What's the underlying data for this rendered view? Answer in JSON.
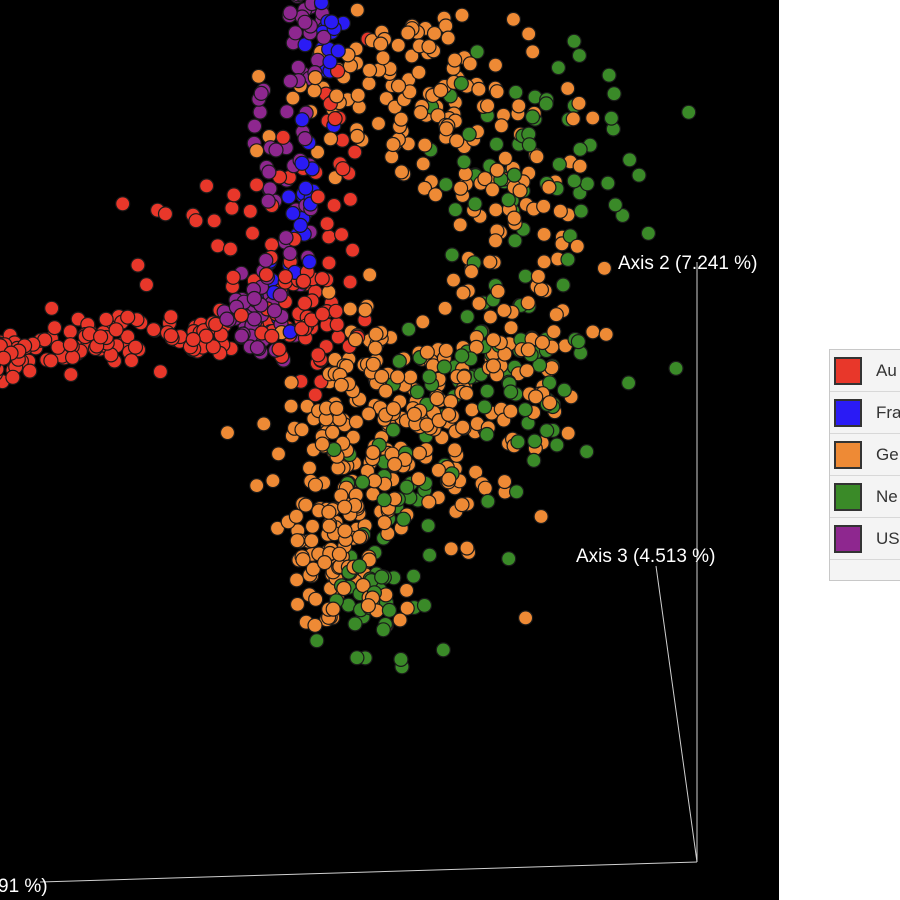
{
  "chart_data": {
    "type": "scatter",
    "subtype": "3d-pcoa",
    "background": "#000000",
    "axes": [
      {
        "name": "axis-1",
        "label": "91 %)"
      },
      {
        "name": "axis-2",
        "label": "Axis 2 (7.241 %)"
      },
      {
        "name": "axis-3",
        "label": "Axis 3 (4.513 %)"
      }
    ],
    "legend": {
      "placement": "right",
      "items": [
        {
          "label": "Au",
          "color": "#e8372a"
        },
        {
          "label": "Fra",
          "color": "#2a1bf5"
        },
        {
          "label": "Ge",
          "color": "#ee8a35"
        },
        {
          "label": "Ne",
          "color": "#3a8a28"
        },
        {
          "label": "US",
          "color": "#8e278f"
        }
      ]
    },
    "series": [
      {
        "name": "Au",
        "color": "#e8372a",
        "count": 260,
        "clusters": [
          {
            "x": -0.95,
            "y": 0.02,
            "sx": 0.08,
            "sy": 0.035,
            "w": 0.22
          },
          {
            "x": -0.68,
            "y": 0.06,
            "sx": 0.09,
            "sy": 0.035,
            "w": 0.2
          },
          {
            "x": -0.38,
            "y": 0.08,
            "sx": 0.08,
            "sy": 0.035,
            "w": 0.14
          },
          {
            "x": -0.1,
            "y": 0.15,
            "sx": 0.09,
            "sy": 0.08,
            "w": 0.26
          },
          {
            "x": -0.02,
            "y": 0.5,
            "sx": 0.06,
            "sy": 0.22,
            "w": 0.12
          },
          {
            "x": -0.45,
            "y": 0.38,
            "sx": 0.12,
            "sy": 0.1,
            "w": 0.06
          }
        ]
      },
      {
        "name": "Fra",
        "color": "#2a1bf5",
        "count": 55,
        "clusters": [
          {
            "x": 0.0,
            "y": 0.82,
            "sx": 0.02,
            "sy": 0.12,
            "w": 0.4
          },
          {
            "x": -0.06,
            "y": 0.45,
            "sx": 0.03,
            "sy": 0.12,
            "w": 0.35
          },
          {
            "x": -0.15,
            "y": 0.18,
            "sx": 0.03,
            "sy": 0.06,
            "w": 0.25
          }
        ]
      },
      {
        "name": "Ge",
        "color": "#ee8a35",
        "count": 560,
        "clusters": [
          {
            "x": 0.22,
            "y": 0.72,
            "sx": 0.18,
            "sy": 0.12,
            "w": 0.2
          },
          {
            "x": 0.5,
            "y": 0.45,
            "sx": 0.16,
            "sy": 0.18,
            "w": 0.12
          },
          {
            "x": 0.55,
            "y": 0.02,
            "sx": 0.14,
            "sy": 0.14,
            "w": 0.14
          },
          {
            "x": 0.08,
            "y": -0.1,
            "sx": 0.1,
            "sy": 0.14,
            "w": 0.18
          },
          {
            "x": 0.02,
            "y": -0.48,
            "sx": 0.09,
            "sy": 0.12,
            "w": 0.2
          },
          {
            "x": 0.3,
            "y": -0.2,
            "sx": 0.16,
            "sy": 0.14,
            "w": 0.16
          }
        ]
      },
      {
        "name": "Ne",
        "color": "#3a8a28",
        "count": 210,
        "clusters": [
          {
            "x": 0.6,
            "y": 0.55,
            "sx": 0.14,
            "sy": 0.16,
            "w": 0.3
          },
          {
            "x": 0.55,
            "y": 0.0,
            "sx": 0.14,
            "sy": 0.14,
            "w": 0.35
          },
          {
            "x": 0.2,
            "y": -0.3,
            "sx": 0.12,
            "sy": 0.18,
            "w": 0.2
          },
          {
            "x": 0.1,
            "y": -0.6,
            "sx": 0.06,
            "sy": 0.08,
            "w": 0.15
          }
        ]
      },
      {
        "name": "US",
        "color": "#8e278f",
        "count": 110,
        "clusters": [
          {
            "x": -0.08,
            "y": 0.86,
            "sx": 0.03,
            "sy": 0.08,
            "w": 0.25
          },
          {
            "x": -0.13,
            "y": 0.45,
            "sx": 0.05,
            "sy": 0.14,
            "w": 0.35
          },
          {
            "x": -0.22,
            "y": 0.12,
            "sx": 0.05,
            "sy": 0.05,
            "w": 0.4
          }
        ]
      }
    ]
  }
}
